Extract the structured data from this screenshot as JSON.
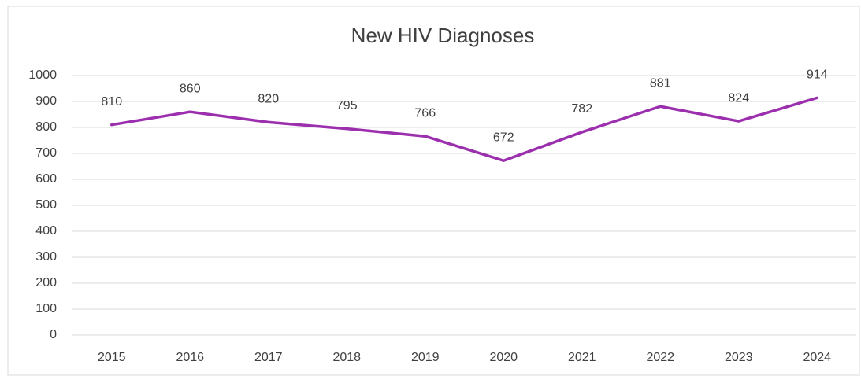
{
  "chart_data": {
    "type": "line",
    "title": "New HIV Diagnoses",
    "categories": [
      "2015",
      "2016",
      "2017",
      "2018",
      "2019",
      "2020",
      "2021",
      "2022",
      "2023",
      "2024"
    ],
    "series": [
      {
        "name": "New HIV Diagnoses",
        "color": "#9b2fae",
        "values": [
          810,
          860,
          820,
          795,
          766,
          672,
          782,
          881,
          824,
          914
        ]
      }
    ],
    "ylim": [
      0,
      1000
    ],
    "yticks": [
      0,
      100,
      200,
      300,
      400,
      500,
      600,
      700,
      800,
      900,
      1000
    ],
    "grid": true
  }
}
